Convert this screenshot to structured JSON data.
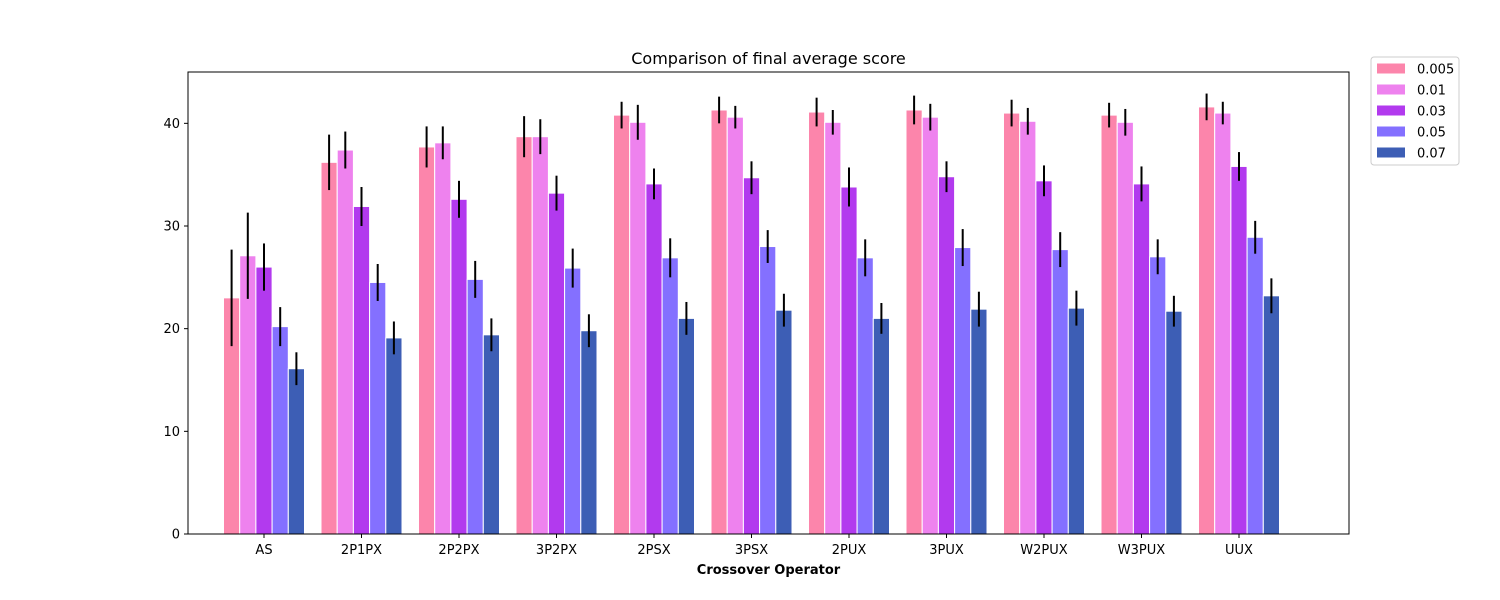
{
  "chart_data": {
    "type": "bar",
    "title": "Comparison of final average score",
    "xlabel": "Crossover Operator",
    "ylabel": "",
    "ylim": [
      0,
      45
    ],
    "yticks": [
      0,
      10,
      20,
      30,
      40
    ],
    "categories": [
      "AS",
      "2P1PX",
      "2P2PX",
      "3P2PX",
      "2PSX",
      "3PSX",
      "2PUX",
      "3PUX",
      "W2PUX",
      "W3PUX",
      "UUX"
    ],
    "legend_position": "outside-top-right",
    "series": [
      {
        "name": "0.005",
        "color": "#fc85ab",
        "values": [
          23.0,
          36.2,
          37.7,
          38.7,
          40.8,
          41.3,
          41.1,
          41.3,
          41.0,
          40.8,
          41.6
        ],
        "errors": [
          4.7,
          2.7,
          2.0,
          2.0,
          1.3,
          1.3,
          1.4,
          1.4,
          1.3,
          1.2,
          1.3
        ]
      },
      {
        "name": "0.01",
        "color": "#ee82ee",
        "values": [
          27.1,
          37.4,
          38.1,
          38.7,
          40.1,
          40.6,
          40.1,
          40.6,
          40.2,
          40.1,
          41.0
        ],
        "errors": [
          4.2,
          1.8,
          1.6,
          1.7,
          1.7,
          1.1,
          1.2,
          1.3,
          1.3,
          1.3,
          1.1
        ]
      },
      {
        "name": "0.03",
        "color": "#b23aee",
        "values": [
          26.0,
          31.9,
          32.6,
          33.2,
          34.1,
          34.7,
          33.8,
          34.8,
          34.4,
          34.1,
          35.8
        ],
        "errors": [
          2.3,
          1.9,
          1.8,
          1.7,
          1.5,
          1.6,
          1.9,
          1.5,
          1.5,
          1.7,
          1.4
        ]
      },
      {
        "name": "0.05",
        "color": "#8470ff",
        "values": [
          20.2,
          24.5,
          24.8,
          25.9,
          26.9,
          28.0,
          26.9,
          27.9,
          27.7,
          27.0,
          28.9
        ],
        "errors": [
          1.9,
          1.8,
          1.8,
          1.9,
          1.9,
          1.6,
          1.8,
          1.8,
          1.7,
          1.7,
          1.6
        ]
      },
      {
        "name": "0.07",
        "color": "#3d5eb5",
        "values": [
          16.1,
          19.1,
          19.4,
          19.8,
          21.0,
          21.8,
          21.0,
          21.9,
          22.0,
          21.7,
          23.2
        ],
        "errors": [
          1.6,
          1.6,
          1.6,
          1.6,
          1.6,
          1.6,
          1.5,
          1.7,
          1.7,
          1.5,
          1.7
        ]
      }
    ]
  }
}
